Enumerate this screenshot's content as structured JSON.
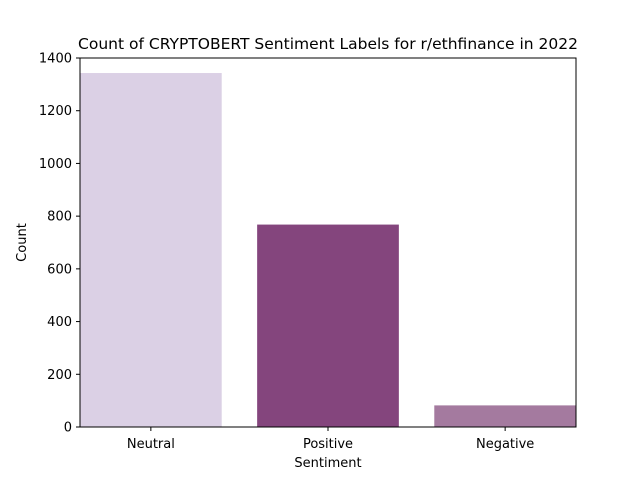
{
  "chart_data": {
    "type": "bar",
    "title": "Count of CRYPTOBERT Sentiment Labels for r/ethfinance in 2022",
    "xlabel": "Sentiment",
    "ylabel": "Count",
    "categories": [
      "Neutral",
      "Positive",
      "Negative"
    ],
    "values": [
      1343,
      768,
      82
    ],
    "colors": [
      "#dbd0e5",
      "#84457d",
      "#a47a9f"
    ],
    "ylim": [
      0,
      1400
    ],
    "yticks": [
      0,
      200,
      400,
      600,
      800,
      1000,
      1200,
      1400
    ],
    "grid": false,
    "legend": "none"
  }
}
